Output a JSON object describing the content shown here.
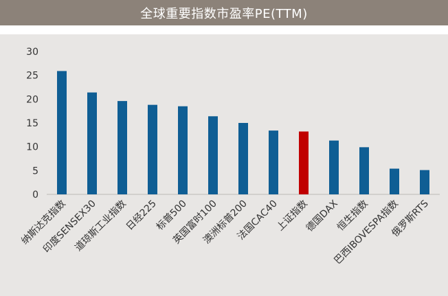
{
  "header": {
    "title": "全球重要指数市盈率PE(TTM)"
  },
  "colors": {
    "bar_default": "#0f5e94",
    "bar_highlight": "#c00000",
    "title_bg": "#8c8279",
    "plot_bg": "#e8e6e4"
  },
  "chart_data": {
    "type": "bar",
    "title": "全球重要指数市盈率PE(TTM)",
    "xlabel": "",
    "ylabel": "",
    "ylim": [
      0,
      30
    ],
    "yticks": [
      0,
      5,
      10,
      15,
      20,
      25,
      30
    ],
    "grid": false,
    "legend": "none",
    "categories": [
      "纳斯达克指数",
      "印度SENSEX30",
      "道琼斯工业指数",
      "日经225",
      "标普500",
      "英国富时100",
      "澳洲标普200",
      "法国CAC40",
      "上证指数",
      "德国DAX",
      "恒生指数",
      "巴西IBOVESPA指数",
      "俄罗斯RTS"
    ],
    "values": [
      25.9,
      21.4,
      19.6,
      18.8,
      18.5,
      16.4,
      15.0,
      13.4,
      13.2,
      11.3,
      9.9,
      5.4,
      5.1
    ],
    "highlight_category": "上证指数"
  }
}
